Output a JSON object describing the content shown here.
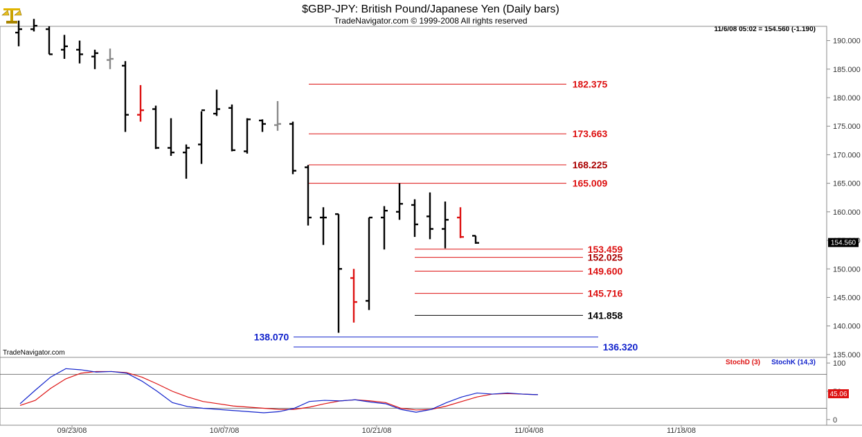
{
  "header": {
    "title": "$GBP-JPY:  British Pound/Japanese Yen  (Daily bars)",
    "subtitle": "TradeNavigator.com © 1999-2008 All rights reserved",
    "quote": "11/6/08 05:02 = 154.560 (-1.190)",
    "watermark": "TradeNavigator.com",
    "logo_icon": "scales-logo-icon"
  },
  "chart_data": [
    {
      "type": "ohlc",
      "price_axis": {
        "ticks": [
          "190.000",
          "185.000",
          "180.000",
          "175.000",
          "170.000",
          "165.000",
          "160.000",
          "155.000",
          "150.000",
          "145.000",
          "140.000",
          "135.000"
        ],
        "ylim": [
          134.5,
          192.5
        ],
        "last_price_label": "154.560"
      },
      "date_axis": {
        "ticks": [
          "09/23/08",
          "10/07/08",
          "10/21/08",
          "11/04/08",
          "11/18/08"
        ]
      },
      "bars": [
        {
          "o": 191.4,
          "h": 193.5,
          "l": 189.0,
          "c": 192.0,
          "color": "black"
        },
        {
          "o": 192.0,
          "h": 193.8,
          "l": 191.6,
          "c": 192.6,
          "color": "black"
        },
        {
          "o": 192.0,
          "h": 192.5,
          "l": 187.6,
          "c": 187.6,
          "color": "black"
        },
        {
          "o": 188.4,
          "h": 191.0,
          "l": 186.8,
          "c": 189.0,
          "color": "black"
        },
        {
          "o": 188.4,
          "h": 190.0,
          "l": 186.0,
          "c": 187.6,
          "color": "black"
        },
        {
          "o": 187.2,
          "h": 188.4,
          "l": 185.0,
          "c": 187.8,
          "color": "black"
        },
        {
          "o": 186.6,
          "h": 188.6,
          "l": 185.0,
          "c": 186.8,
          "color": "gray"
        },
        {
          "o": 185.6,
          "h": 186.4,
          "l": 174.0,
          "c": 177.0,
          "color": "black"
        },
        {
          "o": 177.0,
          "h": 182.2,
          "l": 175.8,
          "c": 177.8,
          "color": "red"
        },
        {
          "o": 178.0,
          "h": 178.6,
          "l": 171.0,
          "c": 171.2,
          "color": "black"
        },
        {
          "o": 171.2,
          "h": 176.4,
          "l": 169.8,
          "c": 170.4,
          "color": "black"
        },
        {
          "o": 170.4,
          "h": 171.8,
          "l": 165.8,
          "c": 171.2,
          "color": "black"
        },
        {
          "o": 171.8,
          "h": 177.6,
          "l": 168.4,
          "c": 177.8,
          "color": "black"
        },
        {
          "o": 177.2,
          "h": 181.4,
          "l": 176.8,
          "c": 178.0,
          "color": "black"
        },
        {
          "o": 178.2,
          "h": 178.8,
          "l": 170.6,
          "c": 170.8,
          "color": "black"
        },
        {
          "o": 170.6,
          "h": 176.4,
          "l": 170.2,
          "c": 176.2,
          "color": "black"
        },
        {
          "o": 176.0,
          "h": 176.2,
          "l": 174.0,
          "c": 175.4,
          "color": "black"
        },
        {
          "o": 175.2,
          "h": 179.4,
          "l": 174.2,
          "c": 175.4,
          "color": "gray"
        },
        {
          "o": 175.4,
          "h": 175.8,
          "l": 166.6,
          "c": 167.2,
          "color": "black"
        },
        {
          "o": 167.8,
          "h": 168.2,
          "l": 157.6,
          "c": 159.0,
          "color": "black"
        },
        {
          "o": 159.0,
          "h": 160.8,
          "l": 154.2,
          "c": 159.0,
          "color": "black"
        },
        {
          "o": 159.6,
          "h": 159.6,
          "l": 138.8,
          "c": 150.0,
          "color": "black"
        },
        {
          "o": 148.4,
          "h": 150.0,
          "l": 140.6,
          "c": 144.2,
          "color": "red"
        },
        {
          "o": 144.4,
          "h": 159.0,
          "l": 142.8,
          "c": 159.0,
          "color": "black"
        },
        {
          "o": 159.0,
          "h": 161.0,
          "l": 153.4,
          "c": 160.2,
          "color": "black"
        },
        {
          "o": 160.0,
          "h": 165.0,
          "l": 158.6,
          "c": 161.4,
          "color": "black"
        },
        {
          "o": 161.2,
          "h": 162.2,
          "l": 155.6,
          "c": 157.8,
          "color": "black"
        },
        {
          "o": 159.2,
          "h": 163.4,
          "l": 155.2,
          "c": 157.0,
          "color": "black"
        },
        {
          "o": 157.0,
          "h": 161.8,
          "l": 153.6,
          "c": 158.6,
          "color": "black"
        },
        {
          "o": 159.0,
          "h": 160.8,
          "l": 155.4,
          "c": 155.6,
          "color": "red"
        },
        {
          "o": 155.8,
          "h": 155.8,
          "l": 154.4,
          "c": 154.56,
          "color": "black"
        }
      ],
      "levels": [
        {
          "value": 182.375,
          "label": "182.375",
          "label_color": "#dd1111",
          "line_color": "#dd1111"
        },
        {
          "value": 173.663,
          "label": "173.663",
          "label_color": "#dd1111",
          "line_color": "#dd1111"
        },
        {
          "value": 168.225,
          "label": "168.225",
          "label_color": "#aa0000",
          "line_color": "#dd1111"
        },
        {
          "value": 165.009,
          "label": "165.009",
          "label_color": "#dd1111",
          "line_color": "#dd1111"
        },
        {
          "value": 153.459,
          "label": "153.459",
          "label_color": "#dd1111",
          "line_color": "#dd1111"
        },
        {
          "value": 152.025,
          "label": "152.025",
          "label_color": "#aa0000",
          "line_color": "#dd1111"
        },
        {
          "value": 149.6,
          "label": "149.600",
          "label_color": "#dd1111",
          "line_color": "#dd1111"
        },
        {
          "value": 145.716,
          "label": "145.716",
          "label_color": "#dd1111",
          "line_color": "#dd1111"
        },
        {
          "value": 141.858,
          "label": "141.858",
          "label_color": "#000000",
          "line_color": "#000000"
        },
        {
          "value": 138.07,
          "label": "138.070",
          "label_color": "#1122cc",
          "line_color": "#1122cc"
        },
        {
          "value": 136.32,
          "label": "136.320",
          "label_color": "#1122cc",
          "line_color": "#1122cc"
        }
      ]
    },
    {
      "type": "line",
      "ylim": [
        -10,
        110
      ],
      "yticks": [
        "100",
        "50",
        "0"
      ],
      "reference_lines": [
        80,
        20
      ],
      "last_value_label": "45.06",
      "series": [
        {
          "name": "StochD (3)",
          "color": "#dd1111",
          "values": [
            25,
            34,
            55,
            72,
            82,
            85,
            85,
            83,
            75,
            63,
            50,
            40,
            32,
            28,
            24,
            22,
            20,
            18,
            18,
            22,
            28,
            33,
            35,
            33,
            30,
            20,
            17,
            18,
            24,
            32,
            40,
            45,
            46,
            45,
            44
          ]
        },
        {
          "name": "StochK (14,3)",
          "color": "#1122cc",
          "values": [
            28,
            52,
            75,
            90,
            88,
            84,
            85,
            82,
            68,
            50,
            30,
            23,
            20,
            18,
            16,
            14,
            12,
            14,
            20,
            32,
            34,
            33,
            35,
            31,
            28,
            18,
            13,
            18,
            30,
            40,
            47,
            45,
            47,
            45,
            44
          ]
        }
      ]
    }
  ]
}
